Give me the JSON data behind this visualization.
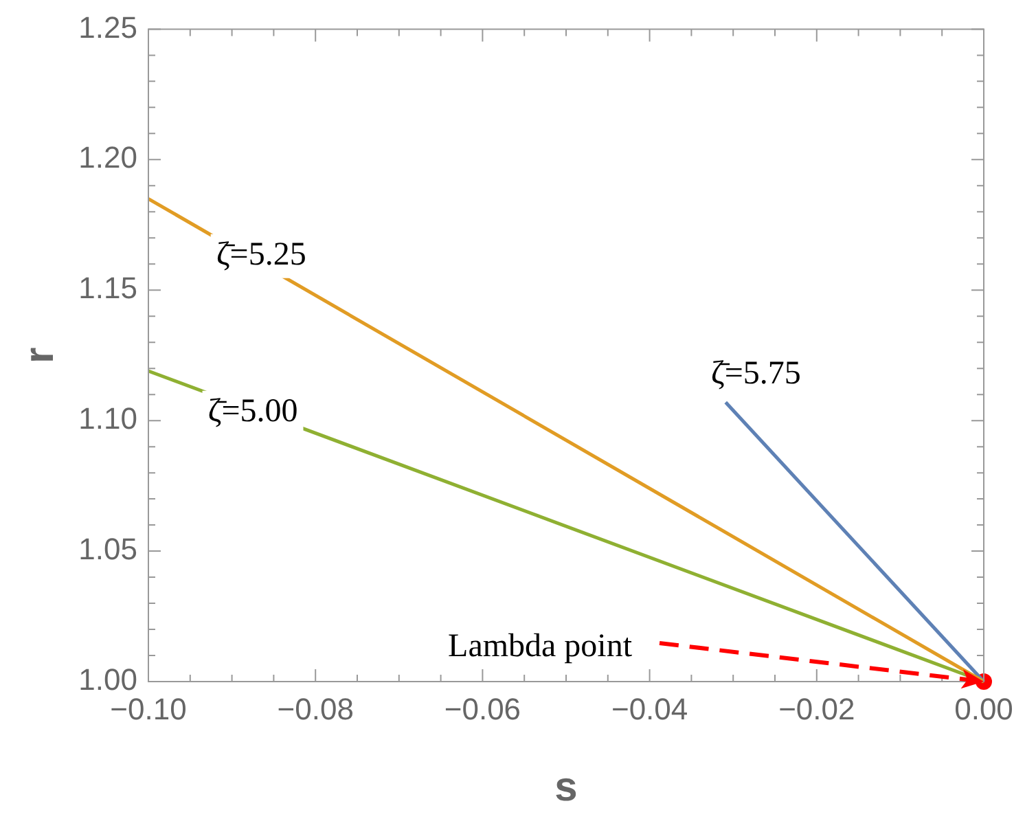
{
  "chart_data": {
    "type": "line",
    "xlabel": "s",
    "ylabel": "r",
    "xlim": [
      -0.1,
      0
    ],
    "ylim": [
      1,
      1.25
    ],
    "xticks": [
      {
        "value": -0.1,
        "label": "−0.10"
      },
      {
        "value": -0.095,
        "label": null
      },
      {
        "value": -0.09,
        "label": null
      },
      {
        "value": -0.085,
        "label": null
      },
      {
        "value": -0.08,
        "label": "−0.08"
      },
      {
        "value": -0.075,
        "label": null
      },
      {
        "value": -0.07,
        "label": null
      },
      {
        "value": -0.065,
        "label": null
      },
      {
        "value": -0.06,
        "label": "−0.06"
      },
      {
        "value": -0.055,
        "label": null
      },
      {
        "value": -0.05,
        "label": null
      },
      {
        "value": -0.045,
        "label": null
      },
      {
        "value": -0.04,
        "label": "−0.04"
      },
      {
        "value": -0.035,
        "label": null
      },
      {
        "value": -0.03,
        "label": null
      },
      {
        "value": -0.025,
        "label": null
      },
      {
        "value": -0.02,
        "label": "−0.02"
      },
      {
        "value": -0.015,
        "label": null
      },
      {
        "value": -0.01,
        "label": null
      },
      {
        "value": -0.005,
        "label": null
      },
      {
        "value": 0,
        "label": "0.00"
      }
    ],
    "yticks": [
      {
        "value": 1,
        "label": "1.00"
      },
      {
        "value": 1.01,
        "label": null
      },
      {
        "value": 1.02,
        "label": null
      },
      {
        "value": 1.03,
        "label": null
      },
      {
        "value": 1.04,
        "label": null
      },
      {
        "value": 1.05,
        "label": "1.05"
      },
      {
        "value": 1.06,
        "label": null
      },
      {
        "value": 1.07,
        "label": null
      },
      {
        "value": 1.08,
        "label": null
      },
      {
        "value": 1.09,
        "label": null
      },
      {
        "value": 1.1,
        "label": "1.10"
      },
      {
        "value": 1.11,
        "label": null
      },
      {
        "value": 1.12,
        "label": null
      },
      {
        "value": 1.13,
        "label": null
      },
      {
        "value": 1.14,
        "label": null
      },
      {
        "value": 1.15,
        "label": "1.15"
      },
      {
        "value": 1.16,
        "label": null
      },
      {
        "value": 1.17,
        "label": null
      },
      {
        "value": 1.18,
        "label": null
      },
      {
        "value": 1.19,
        "label": null
      },
      {
        "value": 1.2,
        "label": "1.20"
      },
      {
        "value": 1.21,
        "label": null
      },
      {
        "value": 1.22,
        "label": null
      },
      {
        "value": 1.23,
        "label": null
      },
      {
        "value": 1.24,
        "label": null
      },
      {
        "value": 1.25,
        "label": "1.25"
      }
    ],
    "series": [
      {
        "color": "#e19c24",
        "x": [
          -0.1,
          0
        ],
        "values": [
          1.185,
          1.0
        ]
      },
      {
        "color": "#8fb032",
        "x": [
          -0.1,
          0
        ],
        "values": [
          1.119,
          1.0
        ]
      },
      {
        "color": "#5e81b5",
        "x": [
          -0.0309,
          0
        ],
        "values": [
          1.107,
          1.0
        ]
      },
      {
        "type": "scatter",
        "color": "#ff0000",
        "x": [
          0
        ],
        "values": [
          1.0
        ],
        "marker": "circle"
      }
    ],
    "annotations": [
      {
        "text": "ζ̄=5.25",
        "x": -0.0865,
        "y": 1.163
      },
      {
        "text": "ζ̄=5.00",
        "x": -0.0875,
        "y": 1.103
      },
      {
        "text": "ζ̄=5.75",
        "x": -0.0309,
        "y": 1.107
      },
      {
        "text": "Lambda point",
        "x": 0,
        "y": 1.0
      }
    ],
    "grid": false,
    "legend": false
  }
}
